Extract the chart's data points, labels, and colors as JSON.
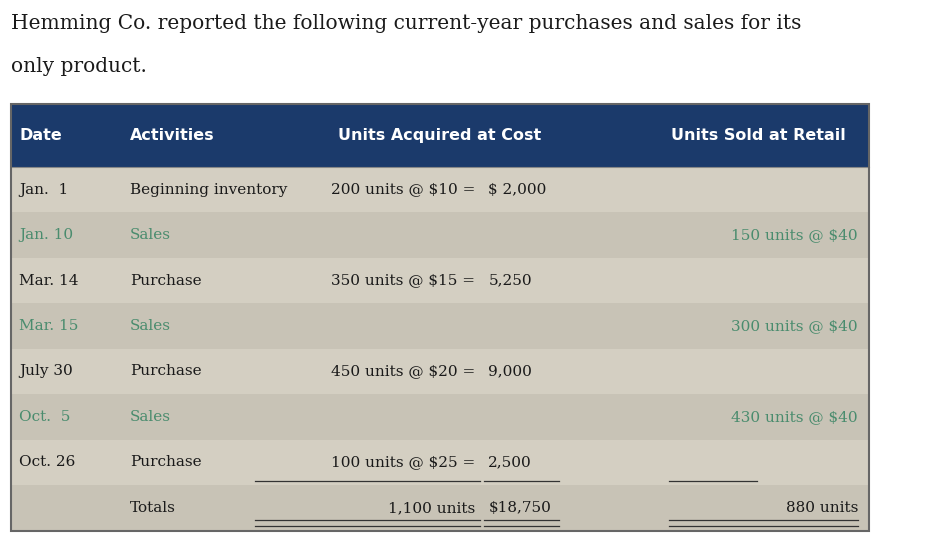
{
  "title_line1": "Hemming Co. reported the following current-year purchases and sales for its",
  "title_line2": "only product.",
  "header_bg": "#1b3a6b",
  "header_text_color": "#ffffff",
  "row_bg_even": "#d4cfc2",
  "row_bg_odd": "#c8c3b6",
  "dark_text": "#1a1a1a",
  "green_text": "#4a8c6e",
  "border_color": "#666666",
  "headers": [
    "Date",
    "Activities",
    "Units Acquired at Cost",
    "Units Sold at Retail"
  ],
  "rows": [
    {
      "date": "Jan.  1",
      "activity": "Beginning inventory",
      "acq_formula": "200 units @ $10 =",
      "acq_val": "$ 2,000",
      "sold": "",
      "text_color": "dark",
      "single_under": false,
      "double_under": false
    },
    {
      "date": "Jan. 10",
      "activity": "Sales",
      "acq_formula": "",
      "acq_val": "",
      "sold": "150 units @ $40",
      "text_color": "green",
      "single_under": false,
      "double_under": false
    },
    {
      "date": "Mar. 14",
      "activity": "Purchase",
      "acq_formula": "350 units @ $15 =",
      "acq_val": "5,250",
      "sold": "",
      "text_color": "dark",
      "single_under": false,
      "double_under": false
    },
    {
      "date": "Mar. 15",
      "activity": "Sales",
      "acq_formula": "",
      "acq_val": "",
      "sold": "300 units @ $40",
      "text_color": "green",
      "single_under": false,
      "double_under": false
    },
    {
      "date": "July 30",
      "activity": "Purchase",
      "acq_formula": "450 units @ $20 =",
      "acq_val": "9,000",
      "sold": "",
      "text_color": "dark",
      "single_under": false,
      "double_under": false
    },
    {
      "date": "Oct.  5",
      "activity": "Sales",
      "acq_formula": "",
      "acq_val": "",
      "sold": "430 units @ $40",
      "text_color": "green",
      "single_under": false,
      "double_under": false
    },
    {
      "date": "Oct. 26",
      "activity": "Purchase",
      "acq_formula": "100 units @ $25 =",
      "acq_val": "2,500",
      "sold": "",
      "text_color": "dark",
      "single_under": true,
      "double_under": false
    },
    {
      "date": "",
      "activity": "Totals",
      "acq_formula": "1,100 units",
      "acq_val": "$18,750",
      "sold": "880 units",
      "text_color": "dark",
      "single_under": false,
      "double_under": true
    }
  ],
  "title_fontsize": 14.5,
  "header_fontsize": 11.5,
  "body_fontsize": 11
}
